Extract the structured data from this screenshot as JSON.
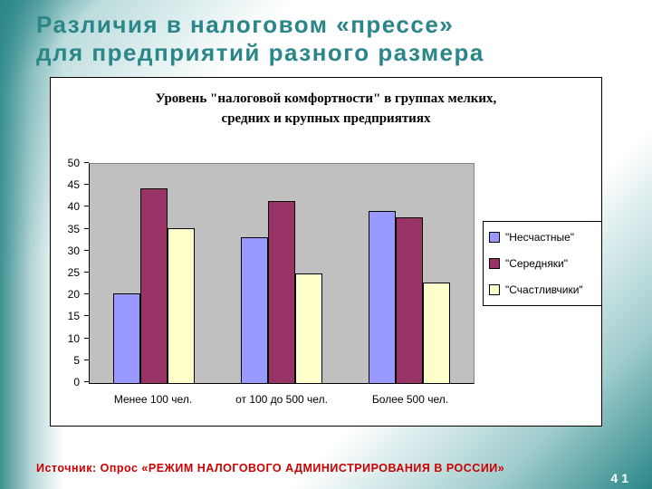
{
  "slide": {
    "title_line1": "Различия в налоговом «прессе»",
    "title_line2": "для предприятий разного размера",
    "footer": "Источник: Опрос «РЕЖИМ НАЛОГОВОГО АДМИНИСТРИРОВАНИЯ В РОССИИ»",
    "page_number": "41"
  },
  "chart_data": {
    "type": "bar",
    "title_line1": "Уровень \"налоговой комфортности\" в группах мелких,",
    "title_line2": "средних и крупных предприятиях",
    "categories": [
      "Менее 100 чел.",
      "от 100 до 500 чел.",
      "Более 500 чел."
    ],
    "series": [
      {
        "name": "\"Несчастные\"",
        "color": "#9999FF",
        "values": [
          20.4,
          33.2,
          39.3
        ]
      },
      {
        "name": "\"Середняки\"",
        "color": "#993366",
        "values": [
          44.4,
          41.6,
          37.8
        ]
      },
      {
        "name": "\"Счастливчики\"",
        "color": "#FFFFCC",
        "values": [
          35.4,
          25.0,
          22.9
        ]
      }
    ],
    "ylim": [
      0,
      50
    ],
    "ytick_step": 5,
    "legend_position": "right",
    "plot_bg": "#C0C0C0",
    "grid": false,
    "accent_color": "#2A8688"
  }
}
